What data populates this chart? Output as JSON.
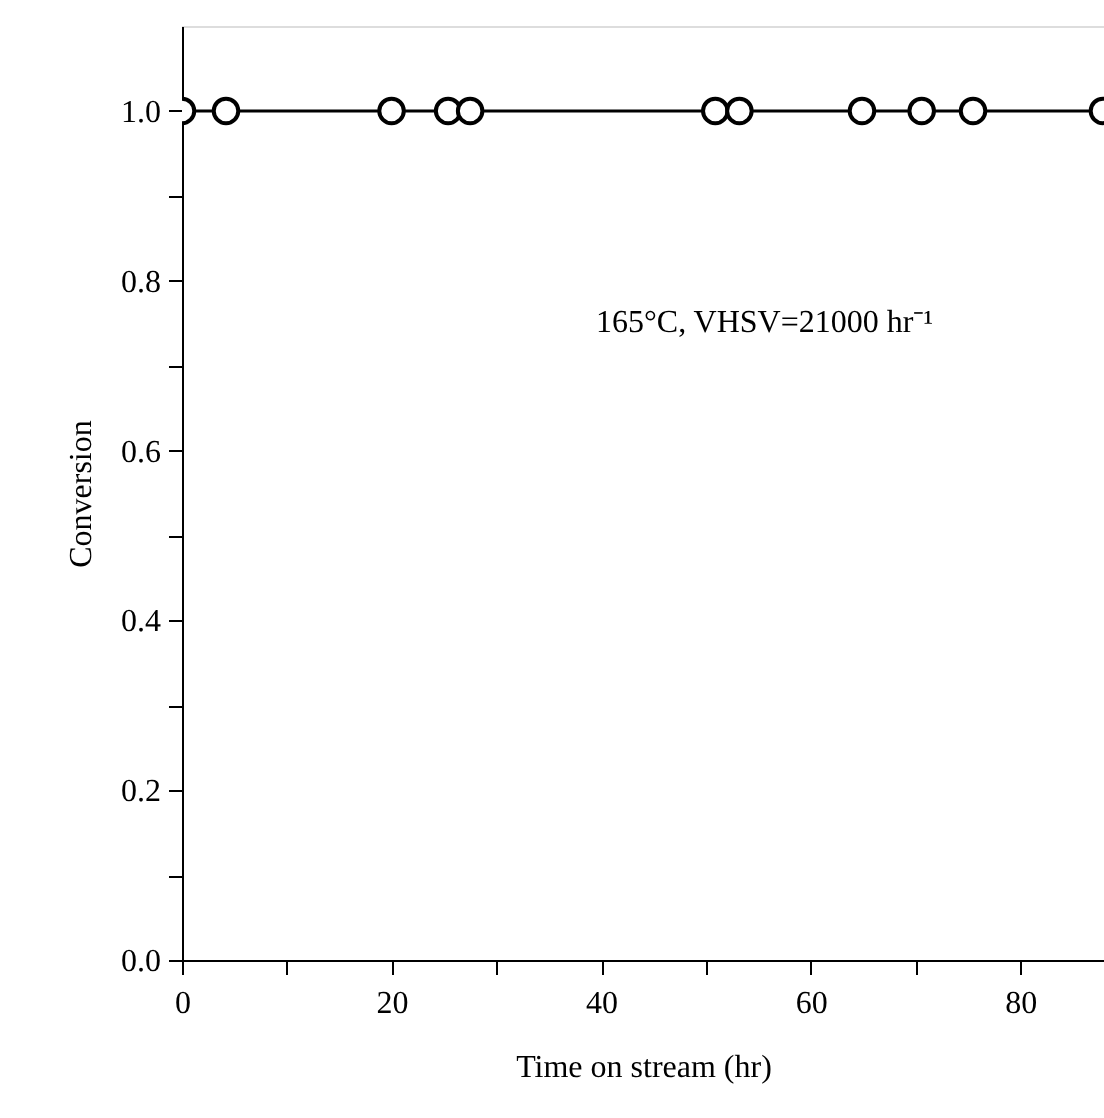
{
  "chart_data": {
    "type": "line",
    "xlabel": "Time on stream (hr)",
    "ylabel": "Conversion",
    "annotations": [
      "165°C, VHSV=21000 hr⁻¹"
    ],
    "x": [
      0,
      4.2,
      20.0,
      25.4,
      27.5,
      50.9,
      53.2,
      64.9,
      70.6,
      75.5,
      87.9
    ],
    "series": [
      {
        "color": "#000000",
        "values": [
          1.0,
          1.0,
          1.0,
          1.0,
          1.0,
          1.0,
          1.0,
          1.0,
          1.0,
          1.0,
          1.0
        ]
      }
    ],
    "xlim": [
      0,
      88
    ],
    "ylim": [
      0,
      1.1
    ],
    "xticks": [
      0,
      {
        "value": 10,
        "label": null
      },
      20,
      {
        "value": 30,
        "label": null
      },
      40,
      {
        "value": 50,
        "label": null
      },
      60,
      {
        "value": 70,
        "label": null
      },
      80
    ],
    "yticks": [
      {
        "value": 0,
        "label": "0.0"
      },
      {
        "value": 0.1,
        "label": null
      },
      0.2,
      {
        "value": 0.3,
        "label": null
      },
      0.4,
      {
        "value": 0.5,
        "label": null
      },
      0.6,
      {
        "value": 0.7,
        "label": null
      },
      0.8,
      {
        "value": 0.9,
        "label": null
      },
      {
        "value": 1.0,
        "label": "1.0"
      }
    ],
    "marker": "circle",
    "line_style": "solid",
    "grid": false
  }
}
